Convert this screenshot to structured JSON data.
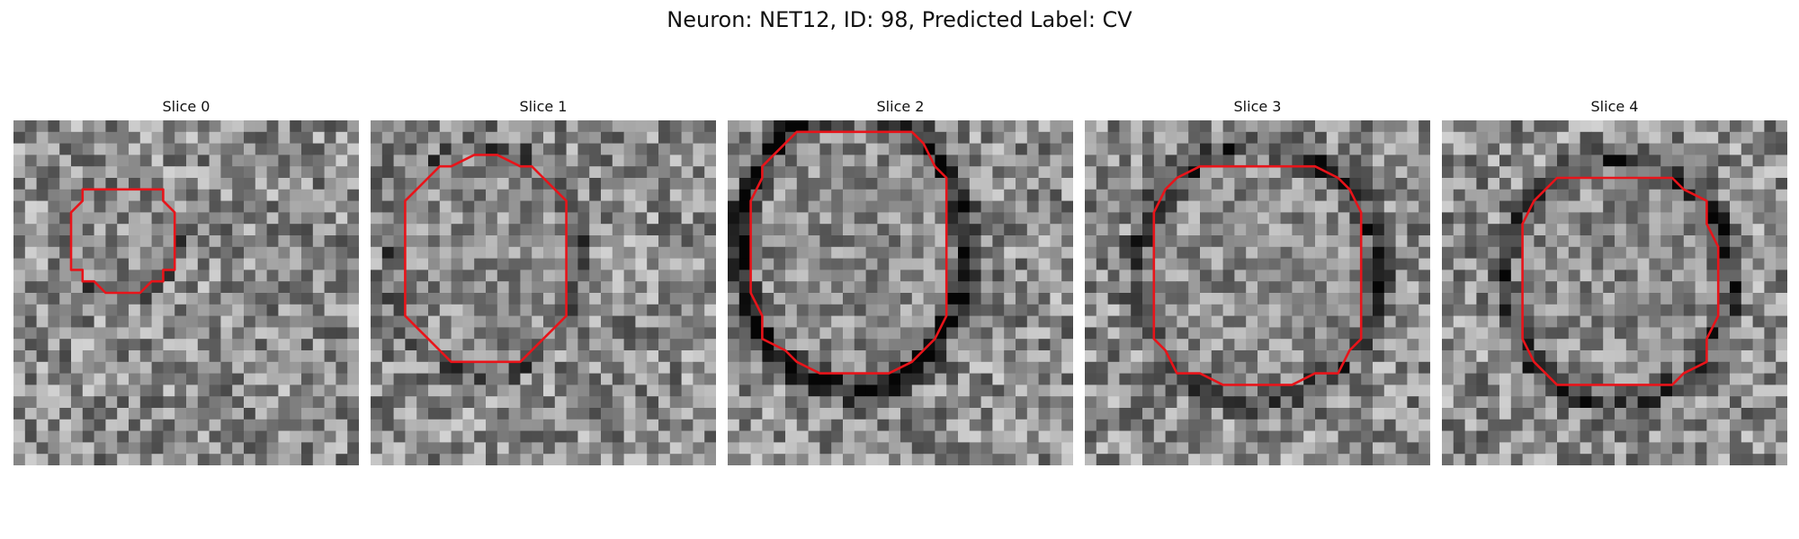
{
  "figure": {
    "title": "Neuron: NET12, ID: 98, Predicted Label: CV"
  },
  "panels": [
    {
      "title": "Slice 0",
      "contour_icon": "red-segmentation-contour"
    },
    {
      "title": "Slice 1",
      "contour_icon": "red-segmentation-contour"
    },
    {
      "title": "Slice 2",
      "contour_icon": "red-segmentation-contour"
    },
    {
      "title": "Slice 3",
      "contour_icon": "red-segmentation-contour"
    },
    {
      "title": "Slice 4",
      "contour_icon": "red-segmentation-contour"
    }
  ],
  "colors": {
    "contour": "#e8141a",
    "background": "#ffffff"
  }
}
